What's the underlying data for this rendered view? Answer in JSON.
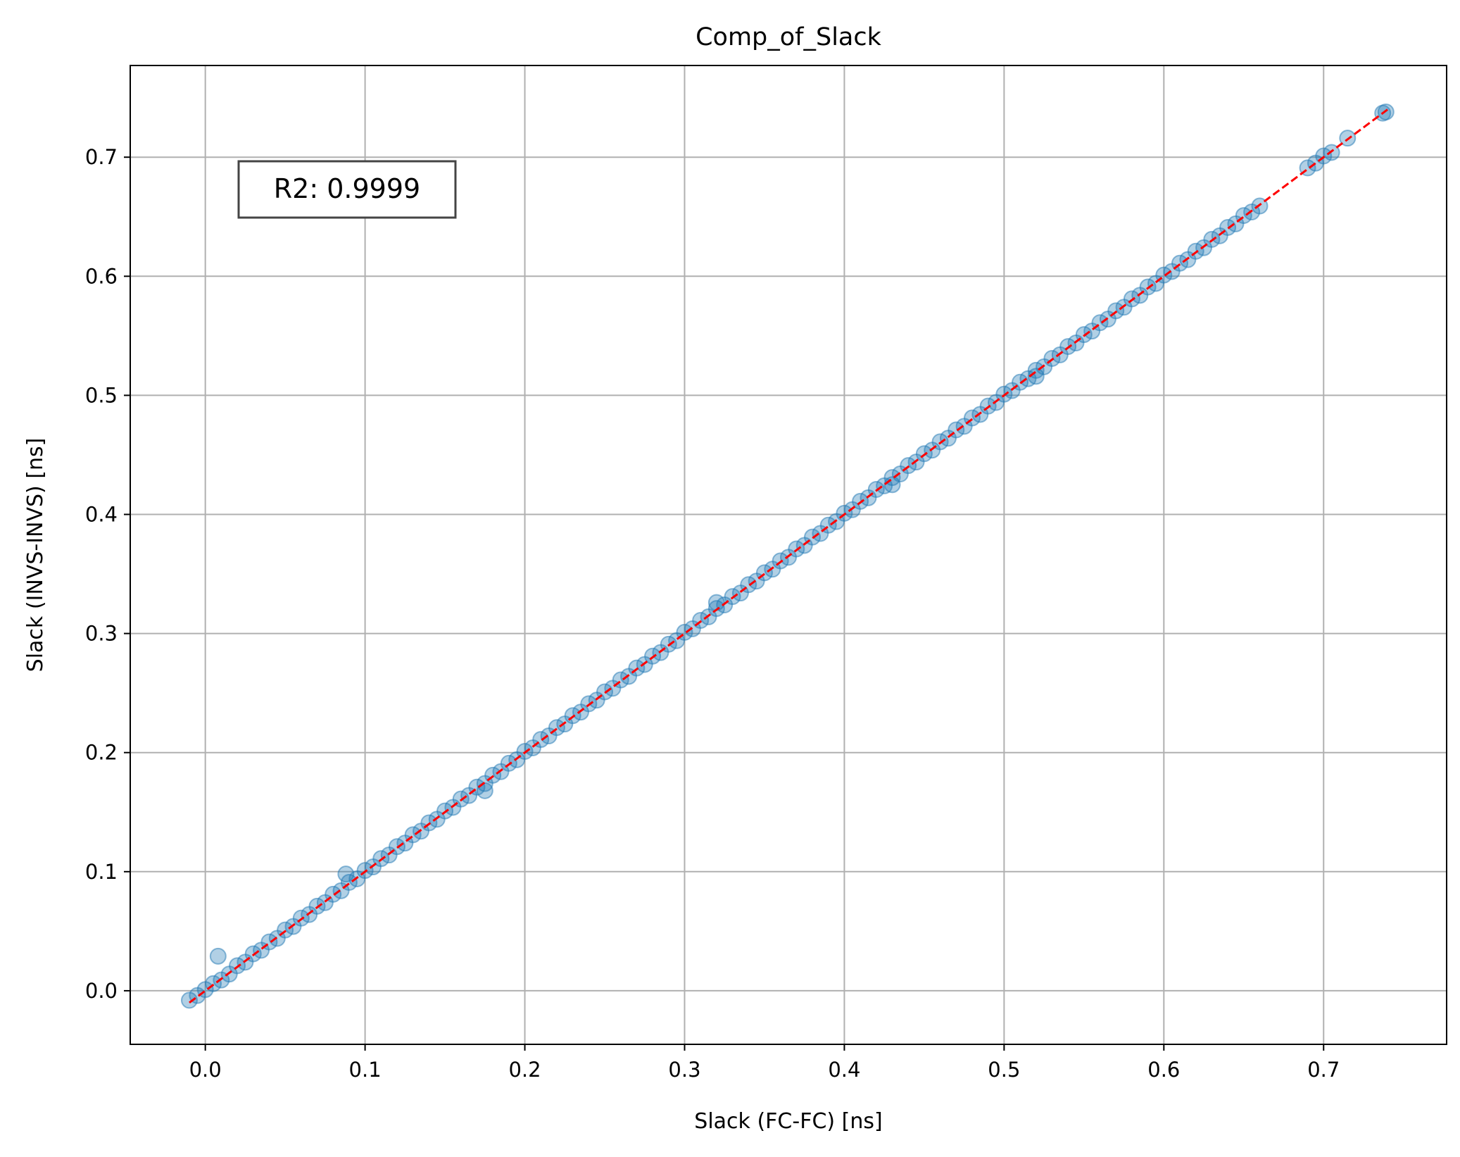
{
  "chart_data": {
    "type": "scatter",
    "title": "Comp_of_Slack",
    "xlabel": "Slack (FC-FC) [ns]",
    "ylabel": "Slack (INVS-INVS) [ns]",
    "xlim": [
      -0.047,
      0.777
    ],
    "ylim": [
      -0.045,
      0.777
    ],
    "grid": true,
    "xticks": [
      "0.0",
      "0.1",
      "0.2",
      "0.3",
      "0.4",
      "0.5",
      "0.6",
      "0.7"
    ],
    "yticks": [
      "0.0",
      "0.1",
      "0.2",
      "0.3",
      "0.4",
      "0.5",
      "0.6",
      "0.7"
    ],
    "annotation": "R2: 0.9999",
    "series": [
      {
        "marker_color": "#1f77b4",
        "x": [
          -0.01,
          -0.005,
          0.0,
          0.005,
          0.01,
          0.015,
          0.02,
          0.025,
          0.03,
          0.035,
          0.04,
          0.045,
          0.05,
          0.055,
          0.06,
          0.065,
          0.07,
          0.075,
          0.08,
          0.085,
          0.09,
          0.095,
          0.1,
          0.105,
          0.11,
          0.115,
          0.12,
          0.125,
          0.13,
          0.135,
          0.14,
          0.145,
          0.15,
          0.155,
          0.16,
          0.165,
          0.17,
          0.175,
          0.18,
          0.185,
          0.19,
          0.195,
          0.2,
          0.205,
          0.21,
          0.215,
          0.22,
          0.225,
          0.23,
          0.235,
          0.24,
          0.245,
          0.25,
          0.255,
          0.26,
          0.265,
          0.27,
          0.275,
          0.28,
          0.285,
          0.29,
          0.295,
          0.3,
          0.305,
          0.31,
          0.315,
          0.32,
          0.325,
          0.33,
          0.335,
          0.34,
          0.345,
          0.35,
          0.355,
          0.36,
          0.365,
          0.37,
          0.375,
          0.38,
          0.385,
          0.39,
          0.395,
          0.4,
          0.405,
          0.41,
          0.415,
          0.42,
          0.425,
          0.43,
          0.435,
          0.44,
          0.445,
          0.45,
          0.455,
          0.46,
          0.465,
          0.47,
          0.475,
          0.48,
          0.485,
          0.49,
          0.495,
          0.5,
          0.505,
          0.51,
          0.515,
          0.52,
          0.525,
          0.53,
          0.535,
          0.54,
          0.545,
          0.55,
          0.555,
          0.56,
          0.565,
          0.57,
          0.575,
          0.58,
          0.585,
          0.59,
          0.595,
          0.6,
          0.605,
          0.61,
          0.615,
          0.62,
          0.625,
          0.63,
          0.635,
          0.64,
          0.645,
          0.65,
          0.655,
          0.66,
          0.69,
          0.695,
          0.7,
          0.705,
          0.715,
          0.737,
          0.739,
          0.008,
          0.088,
          0.175,
          0.32,
          0.43,
          0.52
        ],
        "y": [
          -0.008,
          -0.004,
          0.001,
          0.006,
          0.009,
          0.014,
          0.021,
          0.024,
          0.031,
          0.034,
          0.041,
          0.044,
          0.051,
          0.054,
          0.061,
          0.064,
          0.071,
          0.074,
          0.081,
          0.084,
          0.091,
          0.094,
          0.101,
          0.104,
          0.111,
          0.114,
          0.121,
          0.124,
          0.131,
          0.134,
          0.141,
          0.144,
          0.151,
          0.154,
          0.161,
          0.164,
          0.171,
          0.174,
          0.181,
          0.184,
          0.191,
          0.194,
          0.201,
          0.204,
          0.211,
          0.214,
          0.221,
          0.224,
          0.231,
          0.234,
          0.241,
          0.244,
          0.251,
          0.254,
          0.261,
          0.264,
          0.271,
          0.274,
          0.281,
          0.284,
          0.291,
          0.294,
          0.301,
          0.304,
          0.311,
          0.314,
          0.321,
          0.324,
          0.331,
          0.334,
          0.341,
          0.344,
          0.351,
          0.354,
          0.361,
          0.364,
          0.371,
          0.374,
          0.381,
          0.384,
          0.391,
          0.394,
          0.401,
          0.404,
          0.411,
          0.414,
          0.421,
          0.424,
          0.431,
          0.434,
          0.441,
          0.444,
          0.451,
          0.454,
          0.461,
          0.464,
          0.471,
          0.474,
          0.481,
          0.484,
          0.491,
          0.494,
          0.501,
          0.504,
          0.511,
          0.514,
          0.521,
          0.524,
          0.531,
          0.534,
          0.541,
          0.544,
          0.551,
          0.554,
          0.561,
          0.564,
          0.571,
          0.574,
          0.581,
          0.584,
          0.591,
          0.594,
          0.601,
          0.604,
          0.611,
          0.614,
          0.621,
          0.624,
          0.631,
          0.634,
          0.641,
          0.644,
          0.651,
          0.654,
          0.659,
          0.691,
          0.695,
          0.701,
          0.704,
          0.716,
          0.737,
          0.738,
          0.029,
          0.098,
          0.168,
          0.326,
          0.425,
          0.516
        ]
      }
    ],
    "reference_line": {
      "style": "dashed",
      "color": "#ff0000",
      "x": [
        -0.01,
        0.74
      ],
      "y": [
        -0.01,
        0.74
      ]
    }
  }
}
